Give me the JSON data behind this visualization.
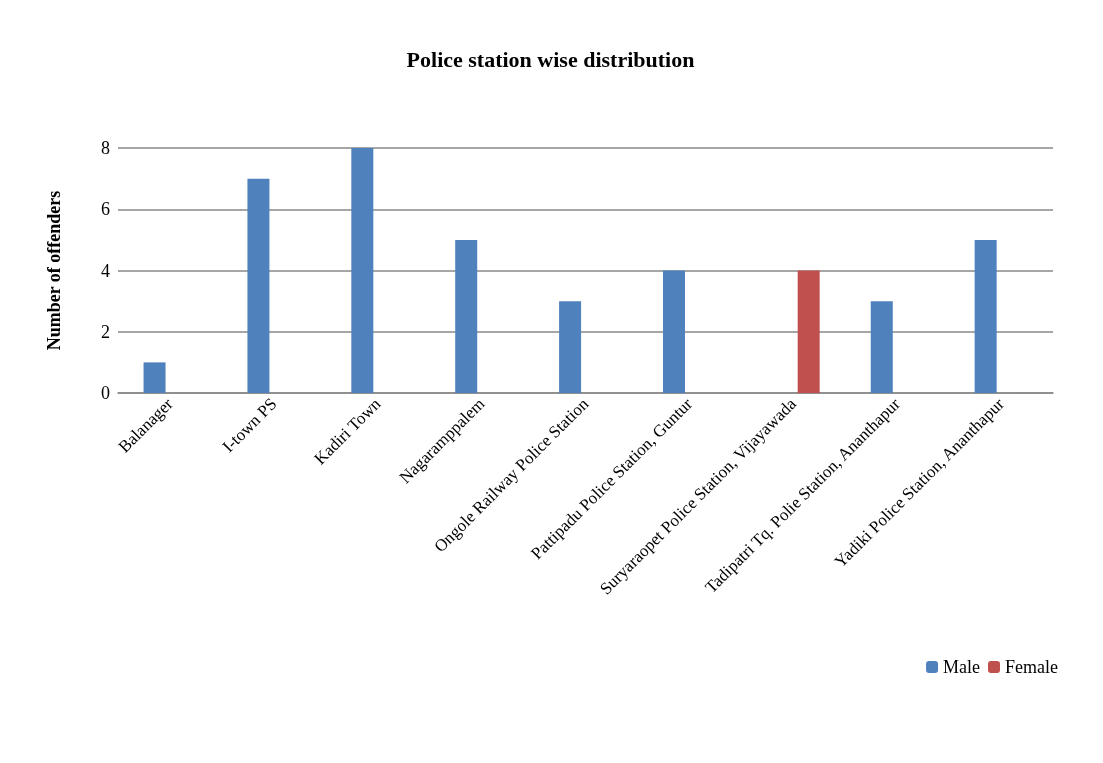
{
  "chart_data": {
    "type": "bar",
    "title": "Police station wise distribution",
    "ylabel": "Number of offenders",
    "categories": [
      "Balanager",
      "I-town PS",
      "Kadiri Town",
      "Nagaramppalem",
      "Ongole Railway Police Station",
      "Pattipadu Police Station, Guntur",
      "Suryaraopet Police Station, Vijayawada",
      "Tadipatri Tq. Polie Station, Ananthapur",
      "Yadiki Police Station, Ananthapur"
    ],
    "series": [
      {
        "name": "Male",
        "color": "#4f81bd",
        "values": [
          1,
          7,
          8,
          5,
          3,
          4,
          0,
          3,
          5
        ]
      },
      {
        "name": "Female",
        "color": "#c0504d",
        "values": [
          0,
          0,
          0,
          0,
          0,
          0,
          4,
          0,
          0
        ]
      }
    ],
    "ylim": [
      0,
      8
    ],
    "yticks": [
      0,
      2,
      4,
      6,
      8
    ],
    "grid": "y",
    "legend": "bottom right"
  }
}
